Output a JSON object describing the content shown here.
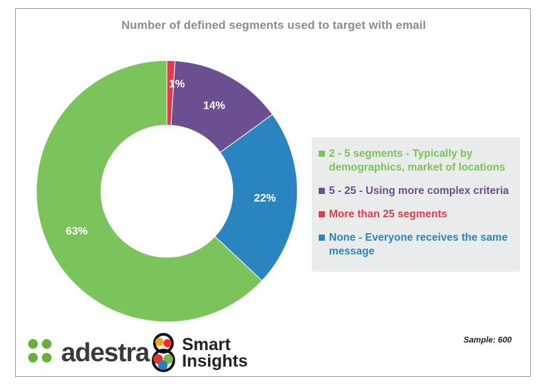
{
  "chart_data": {
    "type": "pie",
    "variant": "donut",
    "title": "Number of defined segments used to target with email",
    "slices": [
      {
        "value": 1,
        "label": "1%",
        "color": "#e23b4e"
      },
      {
        "value": 14,
        "label": "14%",
        "color": "#6b4f91"
      },
      {
        "value": 22,
        "label": "22%",
        "color": "#2a84bf"
      },
      {
        "value": 63,
        "label": "63%",
        "color": "#7bc35b"
      }
    ],
    "legend": {
      "placement": "right",
      "entries": [
        {
          "name": "2 - 5 segments -  Typically by demographics, market of locations",
          "color": "#7bc35b"
        },
        {
          "name": "5 - 25 - Using more complex criteria",
          "color": "#6b4f91"
        },
        {
          "name": "More than 25 segments",
          "color": "#e23b4e"
        },
        {
          "name": "None - Everyone receives the same message",
          "color": "#2a84bf"
        }
      ]
    },
    "sample": "Sample: 600"
  },
  "logos": {
    "adestra": "adestra",
    "smart_line1": "Smart",
    "smart_line2": "Insights"
  }
}
